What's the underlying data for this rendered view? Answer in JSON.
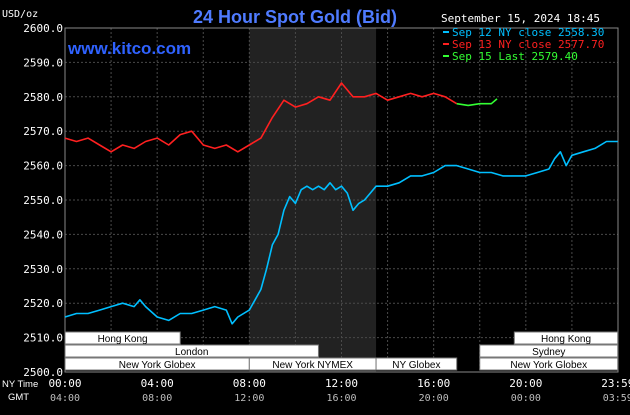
{
  "chart_data": {
    "type": "line",
    "title": "24 Hour Spot Gold (Bid)",
    "brand": "www.kitco.com",
    "timestamp": "September 15, 2024 18:45",
    "y_unit": "USD/oz",
    "ylim": [
      2500,
      2600
    ],
    "y_ticks": [
      "2600.0",
      "2590.0",
      "2580.0",
      "2570.0",
      "2560.0",
      "2550.0",
      "2540.0",
      "2530.0",
      "2520.0",
      "2510.0",
      "2500.0"
    ],
    "x_row_labels": {
      "ny": "NY Time",
      "gmt": "GMT"
    },
    "x_ticks_ny": [
      "00:00",
      "04:00",
      "08:00",
      "12:00",
      "16:00",
      "20:00",
      "23:59"
    ],
    "x_ticks_gmt": [
      "04:00",
      "08:00",
      "12:00",
      "16:00",
      "20:00",
      "00:00",
      "03:59"
    ],
    "grid": true,
    "legend_position": "top-right",
    "legend": [
      {
        "label": "Sep 12 NY close 2558.30",
        "color": "#00bfff"
      },
      {
        "label": "Sep 13 NY close 2577.70",
        "color": "#ff2020"
      },
      {
        "label": "Sep 15 Last 2579.40",
        "color": "#33ff33"
      }
    ],
    "shaded_hours": [
      8,
      13.5
    ],
    "sessions": [
      {
        "label": "Hong Kong",
        "start": 0,
        "end": 5,
        "row": 0
      },
      {
        "label": "Hong Kong",
        "start": 19.5,
        "end": 23.99,
        "row": 0
      },
      {
        "label": "London",
        "start": 0,
        "end": 11,
        "row": 1
      },
      {
        "label": "Sydney",
        "start": 18,
        "end": 23.99,
        "row": 1
      },
      {
        "label": "New York Globex",
        "start": 0,
        "end": 8,
        "row": 2
      },
      {
        "label": "New York NYMEX",
        "start": 8,
        "end": 13.5,
        "row": 2
      },
      {
        "label": "NY Globex",
        "start": 13.5,
        "end": 17,
        "row": 2
      },
      {
        "label": "New York Globex",
        "start": 18,
        "end": 23.99,
        "row": 2
      }
    ],
    "series": [
      {
        "name": "Sep 12",
        "color": "#00bfff",
        "x": [
          0,
          0.5,
          1,
          1.5,
          2,
          2.5,
          3,
          3.25,
          3.5,
          4,
          4.5,
          5,
          5.5,
          6,
          6.5,
          7,
          7.25,
          7.5,
          8,
          8.25,
          8.5,
          8.75,
          9,
          9.25,
          9.5,
          9.75,
          10,
          10.25,
          10.5,
          10.75,
          11,
          11.25,
          11.5,
          11.75,
          12,
          12.25,
          12.5,
          12.75,
          13,
          13.25,
          13.5,
          14,
          14.5,
          15,
          15.5,
          16,
          16.5,
          17,
          17.5,
          18,
          18.5,
          19,
          19.5,
          20,
          20.5,
          21,
          21.25,
          21.5,
          21.75,
          22,
          22.5,
          23,
          23.5,
          23.99
        ],
        "values": [
          2516,
          2517,
          2517,
          2518,
          2519,
          2520,
          2519,
          2521,
          2519,
          2516,
          2515,
          2517,
          2517,
          2518,
          2519,
          2518,
          2514,
          2516,
          2518,
          2521,
          2524,
          2530,
          2537,
          2540,
          2547,
          2551,
          2549,
          2553,
          2554,
          2553,
          2554,
          2553,
          2555,
          2553,
          2554,
          2552,
          2547,
          2549,
          2550,
          2552,
          2554,
          2554,
          2555,
          2557,
          2557,
          2558,
          2560,
          2560,
          2559,
          2558,
          2558,
          2557,
          2557,
          2557,
          2558,
          2559,
          2562,
          2564,
          2560,
          2563,
          2564,
          2565,
          2567,
          2567
        ]
      },
      {
        "name": "Sep 13",
        "color": "#ff2020",
        "x": [
          0,
          0.5,
          1,
          1.5,
          2,
          2.5,
          3,
          3.5,
          4,
          4.5,
          5,
          5.5,
          6,
          6.5,
          7,
          7.5,
          8,
          8.5,
          9,
          9.5,
          10,
          10.5,
          11,
          11.5,
          12,
          12.5,
          13,
          13.5,
          14,
          14.5,
          15,
          15.5,
          16,
          16.5,
          17
        ],
        "values": [
          2568,
          2567,
          2568,
          2566,
          2564,
          2566,
          2565,
          2567,
          2568,
          2566,
          2569,
          2570,
          2566,
          2565,
          2566,
          2564,
          2566,
          2568,
          2574,
          2579,
          2577,
          2578,
          2580,
          2579,
          2584,
          2580,
          2580,
          2581,
          2579,
          2580,
          2581,
          2580,
          2581,
          2580,
          2578
        ]
      },
      {
        "name": "Sep 15",
        "color": "#33ff33",
        "x": [
          17,
          17.5,
          18,
          18.5,
          18.75
        ],
        "values": [
          2578,
          2577.5,
          2578,
          2578,
          2579.4
        ]
      }
    ]
  }
}
